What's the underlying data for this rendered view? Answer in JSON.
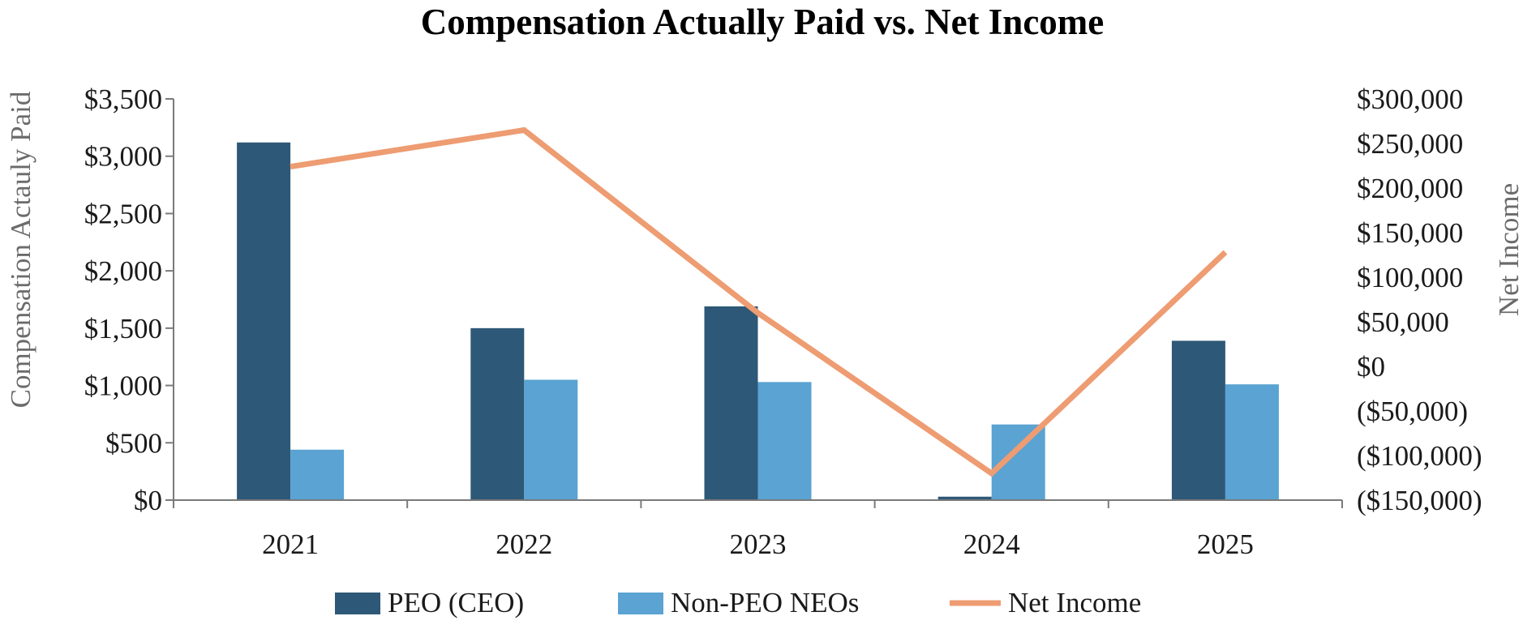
{
  "chart_data": {
    "type": "bar",
    "title": "Compensation Actually Paid vs. Net Income",
    "categories": [
      "2021",
      "2022",
      "2023",
      "2024",
      "2025"
    ],
    "ylabel": "Compensation Actauly Paid",
    "y2label": "Net Income",
    "ylim": [
      0,
      3500
    ],
    "y_ticks": [
      "$3,500",
      "$3,000",
      "$2,500",
      "$2,000",
      "$1,500",
      "$1,000",
      "$500",
      "$0"
    ],
    "y_tick_values": [
      3500,
      3000,
      2500,
      2000,
      1500,
      1000,
      500,
      0
    ],
    "y2lim": [
      -150000,
      300000
    ],
    "y2_ticks": [
      "$300,000",
      "$250,000",
      "$200,000",
      "$150,000",
      "$100,000",
      "$50,000",
      "$0",
      "($50,000)",
      "($100,000)",
      "($150,000)"
    ],
    "y2_tick_values": [
      300000,
      250000,
      200000,
      150000,
      100000,
      50000,
      0,
      -50000,
      -100000,
      -150000
    ],
    "legend_position": "bottom",
    "grid": false,
    "series": [
      {
        "name": "PEO (CEO)",
        "type": "bar",
        "axis": "left",
        "color": "#2e5877",
        "values": [
          3120,
          1500,
          1690,
          30,
          1390
        ]
      },
      {
        "name": "Non-PEO NEOs",
        "type": "bar",
        "axis": "left",
        "color": "#5aa3d2",
        "values": [
          440,
          1050,
          1030,
          660,
          1010
        ]
      },
      {
        "name": "Net Income",
        "type": "line",
        "axis": "right",
        "color": "#ee9c72",
        "values": [
          224000,
          265000,
          60000,
          -120000,
          128000
        ]
      }
    ]
  }
}
